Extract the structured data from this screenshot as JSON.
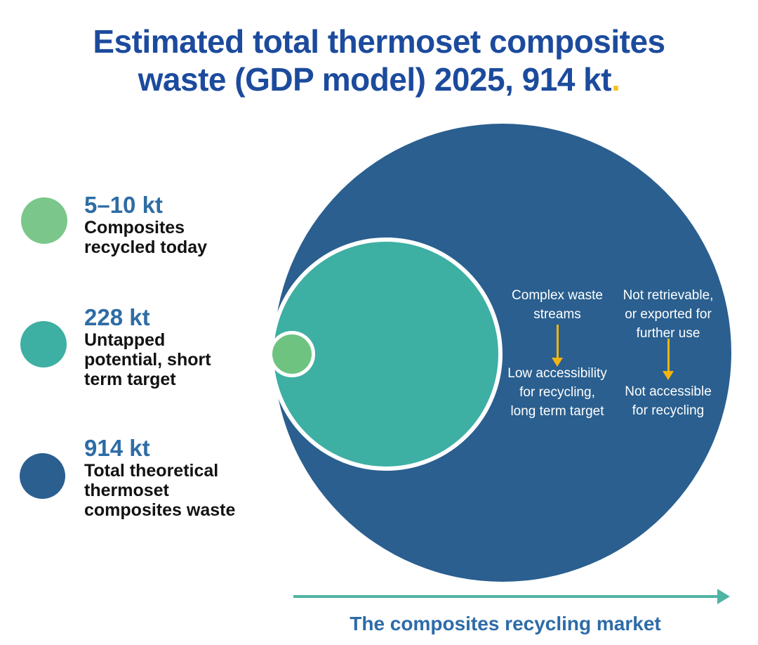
{
  "title": {
    "line1": "Estimated total thermoset composites",
    "line2": "waste (GDP model) 2025, 914 kt",
    "period": "."
  },
  "colors": {
    "title_blue": "#1c4b9d",
    "value_blue": "#2e6ca5",
    "big_circle_blue": "#2a5f8f",
    "mid_circle_teal": "#3eafa3",
    "small_circle_green": "#6fc381",
    "legend_green": "#7bc78b",
    "legend_teal": "#3eafa3",
    "legend_blue": "#2a5f8f",
    "arrow_gold": "#f2b412",
    "axis_teal": "#50b4a5",
    "title_period_yellow": "#f6c21a",
    "annotation_text": "#ffffff"
  },
  "legend": {
    "items": [
      {
        "value": "5–10 kt",
        "label": "Composites\nrecycled today",
        "color": "#7bc78b"
      },
      {
        "value": "228 kt",
        "label": "Untapped\npotential, short\nterm target",
        "color": "#3eafa3"
      },
      {
        "value": "914 kt",
        "label": "Total theoretical\nthermoset\ncomposites waste",
        "color": "#2a5f8f"
      }
    ]
  },
  "diagram": {
    "annotations": {
      "left_top": "Complex waste\nstreams",
      "left_bottom": "Low accessibility\nfor recycling,\nlong term target",
      "right_top": "Not retrievable,\nor exported for\nfurther use",
      "right_bottom": "Not accessible\nfor recycling"
    },
    "axis_label": "The composites recycling market"
  },
  "chart_data": {
    "type": "nested-circles",
    "title": "Estimated total thermoset composites waste (GDP model) 2025, 914 kt.",
    "year": 2025,
    "model": "GDP",
    "total_kt": 914,
    "categories": [
      "Composites recycled today",
      "Untapped potential, short term target",
      "Total theoretical thermoset composites waste"
    ],
    "values_kt": [
      "5–10",
      228,
      914
    ],
    "value_labels": [
      "5–10 kt",
      "228 kt",
      "914 kt"
    ],
    "series": [
      {
        "name": "Composites recycled today",
        "value_kt_min": 5,
        "value_kt_max": 10,
        "color": "#6fc381"
      },
      {
        "name": "Untapped potential, short term target",
        "value_kt": 228,
        "color": "#3eafa3"
      },
      {
        "name": "Total theoretical thermoset composites waste",
        "value_kt": 914,
        "color": "#2a5f8f"
      }
    ],
    "annotations": [
      "Complex waste streams → Low accessibility for recycling, long term target",
      "Not retrievable, or exported for further use → Not accessible for recycling"
    ],
    "xlabel": "The composites recycling market",
    "legend_position": "left",
    "layout": "circles tangent at left edge of largest circle, areas proportional to values"
  }
}
